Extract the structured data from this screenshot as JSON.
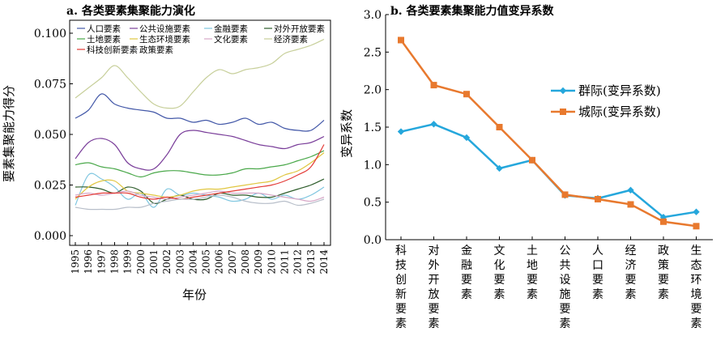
{
  "chart_data": [
    {
      "type": "line",
      "title": "a. 各类要素集聚能力演化",
      "xlabel": "年份",
      "ylabel": "要素集聚能力得分",
      "ylim": [
        0,
        0.1
      ],
      "yticks": [
        "0.000",
        "0.025",
        "0.050",
        "0.075",
        "0.100"
      ],
      "x": [
        "1995",
        "1996",
        "1997",
        "1998",
        "1999",
        "2000",
        "2001",
        "2002",
        "2003",
        "2004",
        "2005",
        "2006",
        "2007",
        "2008",
        "2009",
        "2010",
        "2011",
        "2012",
        "2013",
        "2014"
      ],
      "legend_position": "top",
      "series": [
        {
          "name": "人口要素",
          "color": "#4358a8",
          "values": [
            0.058,
            0.062,
            0.07,
            0.065,
            0.063,
            0.062,
            0.061,
            0.058,
            0.058,
            0.056,
            0.057,
            0.055,
            0.056,
            0.058,
            0.055,
            0.056,
            0.053,
            0.052,
            0.052,
            0.057
          ]
        },
        {
          "name": "公共设施要素",
          "color": "#7a3e9a",
          "values": [
            0.038,
            0.046,
            0.048,
            0.045,
            0.036,
            0.033,
            0.033,
            0.04,
            0.05,
            0.052,
            0.051,
            0.05,
            0.049,
            0.047,
            0.045,
            0.044,
            0.043,
            0.045,
            0.046,
            0.049
          ]
        },
        {
          "name": "金融要素",
          "color": "#7fc6e0",
          "values": [
            0.015,
            0.03,
            0.028,
            0.024,
            0.018,
            0.021,
            0.014,
            0.023,
            0.02,
            0.021,
            0.02,
            0.019,
            0.017,
            0.018,
            0.021,
            0.018,
            0.02,
            0.018,
            0.02,
            0.024
          ]
        },
        {
          "name": "对外开放要素",
          "color": "#2d5c2a",
          "values": [
            0.024,
            0.024,
            0.023,
            0.021,
            0.024,
            0.022,
            0.016,
            0.018,
            0.02,
            0.018,
            0.018,
            0.021,
            0.02,
            0.02,
            0.019,
            0.019,
            0.021,
            0.023,
            0.025,
            0.028
          ]
        },
        {
          "name": "土地要素",
          "color": "#4aa84a",
          "values": [
            0.035,
            0.036,
            0.034,
            0.033,
            0.031,
            0.029,
            0.031,
            0.032,
            0.032,
            0.031,
            0.03,
            0.03,
            0.031,
            0.033,
            0.033,
            0.034,
            0.035,
            0.037,
            0.039,
            0.042
          ]
        },
        {
          "name": "生态环境要素",
          "color": "#e0c640",
          "values": [
            0.018,
            0.024,
            0.027,
            0.027,
            0.022,
            0.021,
            0.02,
            0.019,
            0.02,
            0.022,
            0.023,
            0.023,
            0.024,
            0.025,
            0.026,
            0.027,
            0.03,
            0.032,
            0.036,
            0.041
          ]
        },
        {
          "name": "文化要素",
          "color": "#d7a8c8",
          "values": [
            0.02,
            0.021,
            0.02,
            0.021,
            0.022,
            0.02,
            0.019,
            0.018,
            0.019,
            0.02,
            0.021,
            0.022,
            0.021,
            0.021,
            0.021,
            0.02,
            0.019,
            0.018,
            0.017,
            0.019
          ]
        },
        {
          "name": "经济要素",
          "color": "#c7cf9a",
          "values": [
            0.068,
            0.073,
            0.078,
            0.084,
            0.078,
            0.071,
            0.065,
            0.063,
            0.064,
            0.071,
            0.078,
            0.082,
            0.08,
            0.082,
            0.083,
            0.085,
            0.09,
            0.092,
            0.094,
            0.097
          ]
        },
        {
          "name": "科技创新要素",
          "color": "#e33a36",
          "values": [
            0.019,
            0.02,
            0.021,
            0.021,
            0.021,
            0.019,
            0.018,
            0.019,
            0.018,
            0.019,
            0.02,
            0.021,
            0.022,
            0.023,
            0.024,
            0.025,
            0.027,
            0.03,
            0.034,
            0.045
          ]
        },
        {
          "name": "政策要素",
          "color": "#b8bfca",
          "values": [
            0.014,
            0.013,
            0.013,
            0.013,
            0.014,
            0.014,
            0.016,
            0.017,
            0.018,
            0.018,
            0.019,
            0.02,
            0.019,
            0.017,
            0.016,
            0.016,
            0.017,
            0.015,
            0.016,
            0.018
          ]
        }
      ]
    },
    {
      "type": "line",
      "title": "b. 各类要素集聚能力值变异系数",
      "ylabel": "变异系数",
      "ylim": [
        0,
        3.0
      ],
      "yticks": [
        "0.0",
        "0.5",
        "1.0",
        "1.5",
        "2.0",
        "2.5",
        "3.0"
      ],
      "categories": [
        "科技创新要素",
        "对外开放要素",
        "金融要素",
        "文化要素",
        "土地要素",
        "公共设施要素",
        "人口要素",
        "经济要素",
        "政策要素",
        "生态环境要素"
      ],
      "legend_position": "top-right",
      "series": [
        {
          "name": "群际(变异系数)",
          "color": "#25a7dc",
          "marker": "diamond",
          "values": [
            1.44,
            1.54,
            1.36,
            0.95,
            1.06,
            0.59,
            0.55,
            0.66,
            0.3,
            0.37
          ]
        },
        {
          "name": "城际(变异系数)",
          "color": "#e8792e",
          "marker": "square",
          "values": [
            2.66,
            2.06,
            1.94,
            1.5,
            1.06,
            0.6,
            0.54,
            0.47,
            0.24,
            0.18
          ]
        }
      ]
    }
  ]
}
